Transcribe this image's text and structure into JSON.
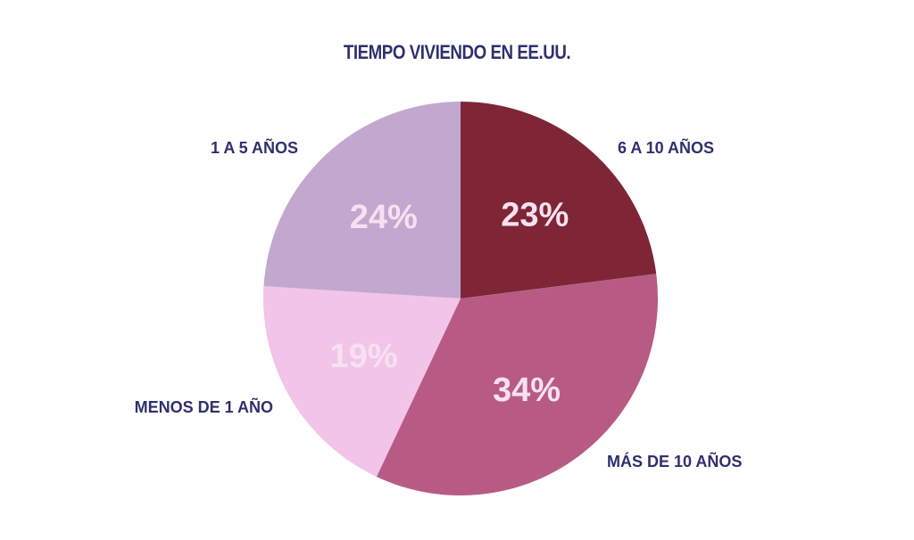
{
  "chart_data": {
    "type": "pie",
    "title": "TIEMPO VIVIENDO EN EE.UU.",
    "start": "top",
    "direction": "clockwise",
    "slices": [
      {
        "label": "6 A 10 AÑOS",
        "value": 23,
        "value_label": "23%",
        "color": "#7e2636"
      },
      {
        "label": "MÁS DE 10 AÑOS",
        "value": 34,
        "value_label": "34%",
        "color": "#b85b84"
      },
      {
        "label": "MENOS DE 1 AÑO",
        "value": 19,
        "value_label": "19%",
        "color": "#f2c4e8"
      },
      {
        "label": "1 A 5 AÑOS",
        "value": 24,
        "value_label": "24%",
        "color": "#c2a8cf"
      }
    ]
  }
}
